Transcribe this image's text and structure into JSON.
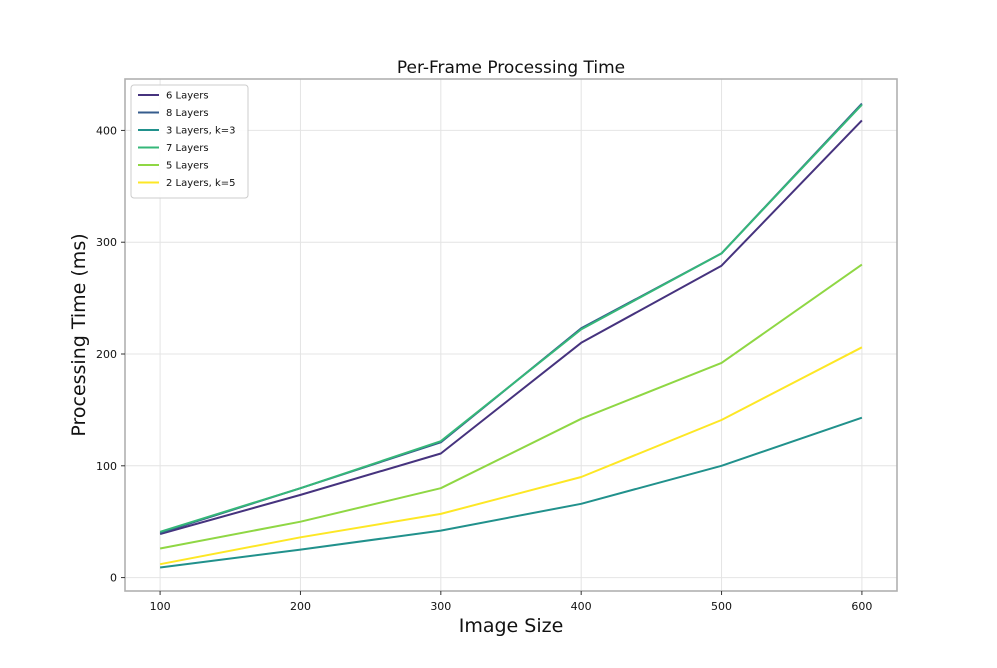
{
  "chart_data": {
    "type": "line",
    "title": "Per-Frame Processing Time",
    "xlabel": "Image Size",
    "ylabel": "Processing Time (ms)",
    "x": [
      100,
      200,
      300,
      400,
      500,
      600
    ],
    "xlim": [
      75,
      625
    ],
    "ylim": [
      -12,
      446
    ],
    "xticks": [
      100,
      200,
      300,
      400,
      500,
      600
    ],
    "yticks": [
      0,
      100,
      200,
      300,
      400
    ],
    "grid": true,
    "legend_position": "top-left",
    "series": [
      {
        "name": "6 Layers",
        "color": "#46337e",
        "values": [
          39,
          74,
          111,
          210,
          279,
          409
        ]
      },
      {
        "name": "8 Layers",
        "color": "#365c8d",
        "values": [
          40,
          80,
          121,
          223,
          290,
          424
        ]
      },
      {
        "name": "3 Layers, k=3",
        "color": "#21918c",
        "values": [
          9,
          25,
          42,
          66,
          100,
          143
        ]
      },
      {
        "name": "7 Layers",
        "color": "#35b779",
        "values": [
          41,
          80,
          122,
          222,
          290,
          423
        ]
      },
      {
        "name": "5 Layers",
        "color": "#8fd744",
        "values": [
          26,
          50,
          80,
          142,
          192,
          280
        ]
      },
      {
        "name": "2 Layers, k=5",
        "color": "#fde725",
        "values": [
          12,
          36,
          57,
          90,
          141,
          206
        ]
      }
    ]
  }
}
